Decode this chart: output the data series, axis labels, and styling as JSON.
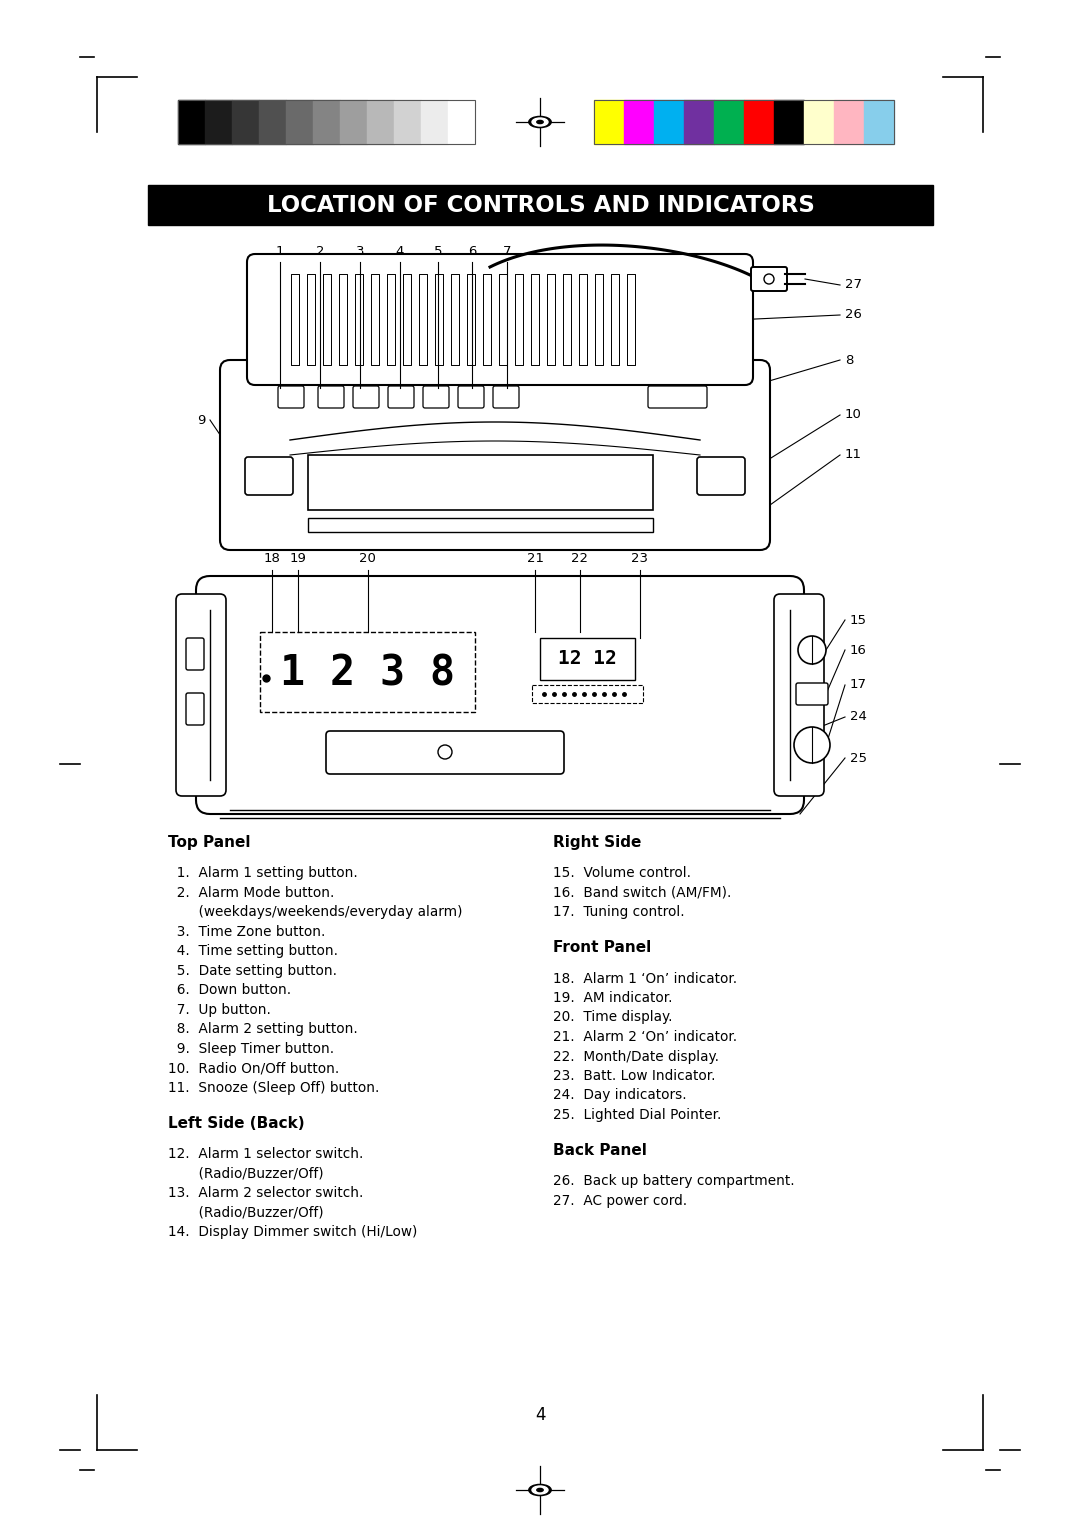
{
  "title": "LOCATION OF CONTROLS AND INDICATORS",
  "page_number": "4",
  "bg": "#ffffff",
  "title_bg": "#000000",
  "title_fg": "#ffffff",
  "grayscale_colors": [
    "#000000",
    "#1c1c1c",
    "#363636",
    "#505050",
    "#6a6a6a",
    "#848484",
    "#9e9e9e",
    "#b8b8b8",
    "#d2d2d2",
    "#ececec",
    "#ffffff"
  ],
  "color_bars": [
    "#ffff00",
    "#ff00ff",
    "#00b0f0",
    "#7030a0",
    "#00b050",
    "#ff0000",
    "#000000",
    "#ffffcc",
    "#ffb6c1",
    "#87ceeb"
  ],
  "top_panel_heading": "Top Panel",
  "top_panel_items": [
    "  1.  Alarm 1 setting button.",
    "  2.  Alarm Mode button.",
    "       (weekdays/weekends/everyday alarm)",
    "  3.  Time Zone button.",
    "  4.  Time setting button.",
    "  5.  Date setting button.",
    "  6.  Down button.",
    "  7.  Up button.",
    "  8.  Alarm 2 setting button.",
    "  9.  Sleep Timer button.",
    "10.  Radio On/Off button.",
    "11.  Snooze (Sleep Off) button."
  ],
  "left_side_heading": "Left Side (Back)",
  "left_side_items": [
    "12.  Alarm 1 selector switch.",
    "       (Radio/Buzzer/Off)",
    "13.  Alarm 2 selector switch.",
    "       (Radio/Buzzer/Off)",
    "14.  Display Dimmer switch (Hi/Low)"
  ],
  "right_side_heading": "Right Side",
  "right_side_items": [
    "15.  Volume control.",
    "16.  Band switch (AM/FM).",
    "17.  Tuning control."
  ],
  "front_panel_heading": "Front Panel",
  "front_panel_items": [
    "18.  Alarm 1 ‘On’ indicator.",
    "19.  AM indicator.",
    "20.  Time display.",
    "21.  Alarm 2 ‘On’ indicator.",
    "22.  Month/Date display.",
    "23.  Batt. Low Indicator.",
    "24.  Day indicators.",
    "25.  Lighted Dial Pointer."
  ],
  "back_panel_heading": "Back Panel",
  "back_panel_items": [
    "26.  Back up battery compartment.",
    "27.  AC power cord."
  ]
}
